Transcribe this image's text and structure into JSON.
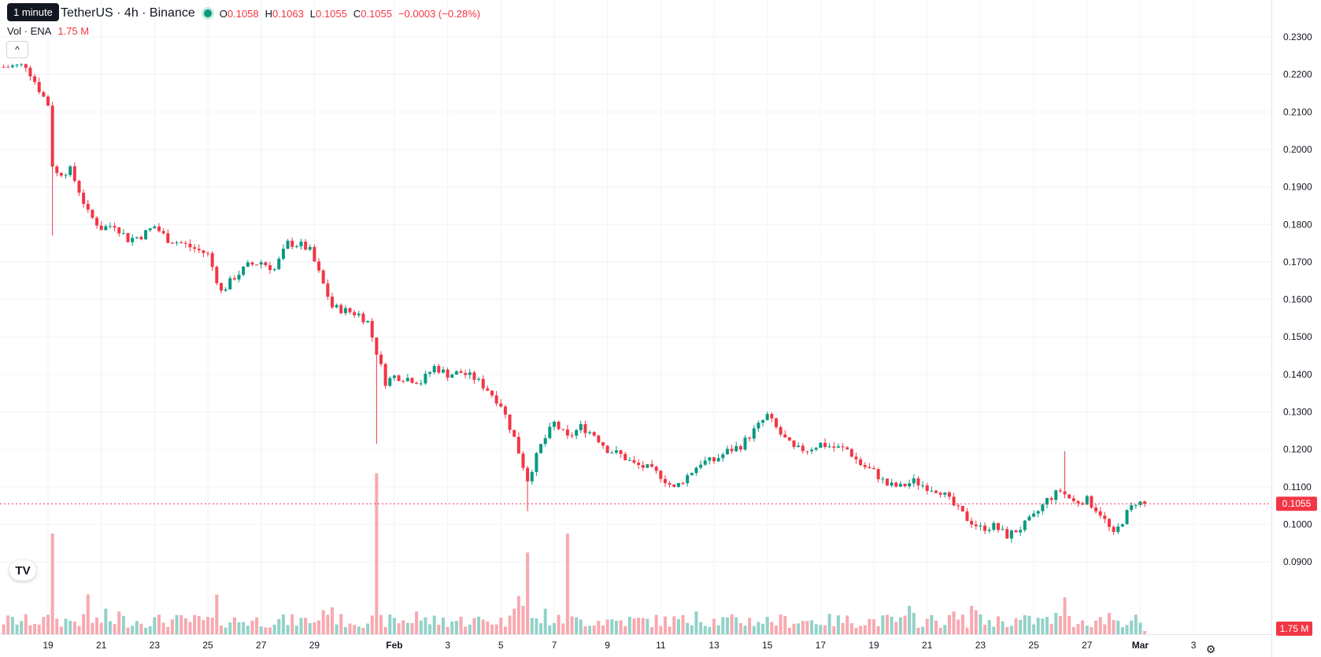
{
  "header": {
    "tooltip": "1 minute",
    "symbol_title": "TetherUS · 4h · Binance",
    "ohlc": [
      {
        "key": "O",
        "value": "0.1058"
      },
      {
        "key": "H",
        "value": "0.1063"
      },
      {
        "key": "L",
        "value": "0.1055"
      },
      {
        "key": "C",
        "value": "0.1055"
      }
    ],
    "change": "−0.0003 (−0.28%)",
    "volume_label": "Vol · ENA",
    "volume_value": "1.75 M",
    "collapse_icon": "chevron-up-icon",
    "logo_text": "TV"
  },
  "colors": {
    "up": "#089981",
    "down": "#f23645",
    "up_volume": "#92d2c8",
    "down_volume": "#f7a9b0",
    "grid": "#f0f3fa",
    "last_price_line": "#f23645"
  },
  "chart_data": {
    "type": "candlestick",
    "timeframe": "4h",
    "last_price": "0.1055",
    "last_volume": "1.75 M",
    "y_axis": {
      "ylim": [
        0.085,
        0.2355
      ],
      "tick_labels": [
        "0.2300",
        "0.2200",
        "0.2100",
        "0.2000",
        "0.1900",
        "0.1800",
        "0.1700",
        "0.1600",
        "0.1500",
        "0.1400",
        "0.1300",
        "0.1200",
        "0.1100",
        "0.1000",
        "0.0900"
      ]
    },
    "x_axis": {
      "tick_labels": [
        {
          "label": "19",
          "t": 0,
          "bold": false
        },
        {
          "label": "21",
          "t": 12,
          "bold": false
        },
        {
          "label": "23",
          "t": 24,
          "bold": false
        },
        {
          "label": "25",
          "t": 36,
          "bold": false
        },
        {
          "label": "27",
          "t": 48,
          "bold": false
        },
        {
          "label": "29",
          "t": 60,
          "bold": false
        },
        {
          "label": "Feb",
          "t": 78,
          "bold": true
        },
        {
          "label": "3",
          "t": 90,
          "bold": false
        },
        {
          "label": "5",
          "t": 102,
          "bold": false
        },
        {
          "label": "7",
          "t": 114,
          "bold": false
        },
        {
          "label": "9",
          "t": 126,
          "bold": false
        },
        {
          "label": "11",
          "t": 138,
          "bold": false
        },
        {
          "label": "13",
          "t": 150,
          "bold": false
        },
        {
          "label": "15",
          "t": 162,
          "bold": false
        },
        {
          "label": "17",
          "t": 174,
          "bold": false
        },
        {
          "label": "19",
          "t": 186,
          "bold": false
        },
        {
          "label": "21",
          "t": 198,
          "bold": false
        },
        {
          "label": "23",
          "t": 210,
          "bold": false
        },
        {
          "label": "25",
          "t": 222,
          "bold": false
        },
        {
          "label": "27",
          "t": 234,
          "bold": false
        },
        {
          "label": "Mar",
          "t": 246,
          "bold": true
        },
        {
          "label": "3",
          "t": 258,
          "bold": false
        }
      ]
    },
    "anchors": [
      [
        -10,
        0.222
      ],
      [
        -5,
        0.2225
      ],
      [
        -2,
        0.216
      ],
      [
        0,
        0.212
      ],
      [
        1,
        0.196
      ],
      [
        2,
        0.1935
      ],
      [
        5,
        0.1945
      ],
      [
        7,
        0.189
      ],
      [
        9,
        0.183
      ],
      [
        12,
        0.179
      ],
      [
        15,
        0.18
      ],
      [
        18,
        0.176
      ],
      [
        21,
        0.177
      ],
      [
        24,
        0.1795
      ],
      [
        27,
        0.176
      ],
      [
        30,
        0.175
      ],
      [
        33,
        0.1735
      ],
      [
        36,
        0.172
      ],
      [
        39,
        0.162
      ],
      [
        42,
        0.166
      ],
      [
        45,
        0.169
      ],
      [
        48,
        0.17
      ],
      [
        51,
        0.168
      ],
      [
        54,
        0.175
      ],
      [
        57,
        0.1745
      ],
      [
        59,
        0.173
      ],
      [
        62,
        0.164
      ],
      [
        64,
        0.158
      ],
      [
        67,
        0.157
      ],
      [
        70,
        0.156
      ],
      [
        72,
        0.154
      ],
      [
        74,
        0.146
      ],
      [
        76,
        0.138
      ],
      [
        78,
        0.1395
      ],
      [
        81,
        0.139
      ],
      [
        84,
        0.138
      ],
      [
        87,
        0.142
      ],
      [
        90,
        0.14
      ],
      [
        93,
        0.1405
      ],
      [
        96,
        0.139
      ],
      [
        99,
        0.136
      ],
      [
        102,
        0.132
      ],
      [
        105,
        0.123
      ],
      [
        108,
        0.112
      ],
      [
        111,
        0.121
      ],
      [
        114,
        0.127
      ],
      [
        117,
        0.123
      ],
      [
        120,
        0.126
      ],
      [
        123,
        0.124
      ],
      [
        126,
        0.12
      ],
      [
        129,
        0.1185
      ],
      [
        132,
        0.116
      ],
      [
        135,
        0.115
      ],
      [
        138,
        0.113
      ],
      [
        141,
        0.1095
      ],
      [
        144,
        0.113
      ],
      [
        147,
        0.1165
      ],
      [
        150,
        0.117
      ],
      [
        153,
        0.1195
      ],
      [
        156,
        0.121
      ],
      [
        159,
        0.125
      ],
      [
        162,
        0.129
      ],
      [
        165,
        0.124
      ],
      [
        168,
        0.12
      ],
      [
        171,
        0.12
      ],
      [
        174,
        0.1215
      ],
      [
        177,
        0.1205
      ],
      [
        180,
        0.12
      ],
      [
        183,
        0.116
      ],
      [
        186,
        0.114
      ],
      [
        189,
        0.1105
      ],
      [
        192,
        0.11
      ],
      [
        195,
        0.1115
      ],
      [
        198,
        0.11
      ],
      [
        201,
        0.109
      ],
      [
        204,
        0.105
      ],
      [
        207,
        0.1015
      ],
      [
        210,
        0.099
      ],
      [
        213,
        0.0995
      ],
      [
        216,
        0.097
      ],
      [
        219,
        0.099
      ],
      [
        222,
        0.102
      ],
      [
        225,
        0.1065
      ],
      [
        228,
        0.109
      ],
      [
        231,
        0.106
      ],
      [
        234,
        0.1065
      ],
      [
        237,
        0.103
      ],
      [
        240,
        0.097
      ],
      [
        243,
        0.103
      ],
      [
        245,
        0.106
      ],
      [
        247,
        0.1055
      ]
    ],
    "wick_extremes": [
      {
        "t": 1,
        "low": 0.177
      },
      {
        "t": 74,
        "low": 0.1215
      },
      {
        "t": 108,
        "low": 0.1035
      },
      {
        "t": 229,
        "high": 0.1195
      }
    ],
    "volume_spikes": [
      {
        "t": 1,
        "scale": 3.6
      },
      {
        "t": 9,
        "scale": 2.8
      },
      {
        "t": 13,
        "scale": 1.8
      },
      {
        "t": 16,
        "scale": 1.6
      },
      {
        "t": 38,
        "scale": 2.8
      },
      {
        "t": 62,
        "scale": 1.7
      },
      {
        "t": 64,
        "scale": 1.9
      },
      {
        "t": 74,
        "scale": 5.2
      },
      {
        "t": 83,
        "scale": 1.6
      },
      {
        "t": 105,
        "scale": 1.8
      },
      {
        "t": 106,
        "scale": 2.7
      },
      {
        "t": 107,
        "scale": 2.0
      },
      {
        "t": 108,
        "scale": 3.1
      },
      {
        "t": 112,
        "scale": 1.8
      },
      {
        "t": 117,
        "scale": 3.6
      },
      {
        "t": 146,
        "scale": 1.6
      },
      {
        "t": 194,
        "scale": 2.0
      },
      {
        "t": 195,
        "scale": 1.5
      },
      {
        "t": 204,
        "scale": 1.6
      },
      {
        "t": 208,
        "scale": 2.0
      },
      {
        "t": 209,
        "scale": 1.7
      },
      {
        "t": 227,
        "scale": 1.5
      },
      {
        "t": 229,
        "scale": 2.6
      },
      {
        "t": 239,
        "scale": 1.5
      }
    ]
  }
}
